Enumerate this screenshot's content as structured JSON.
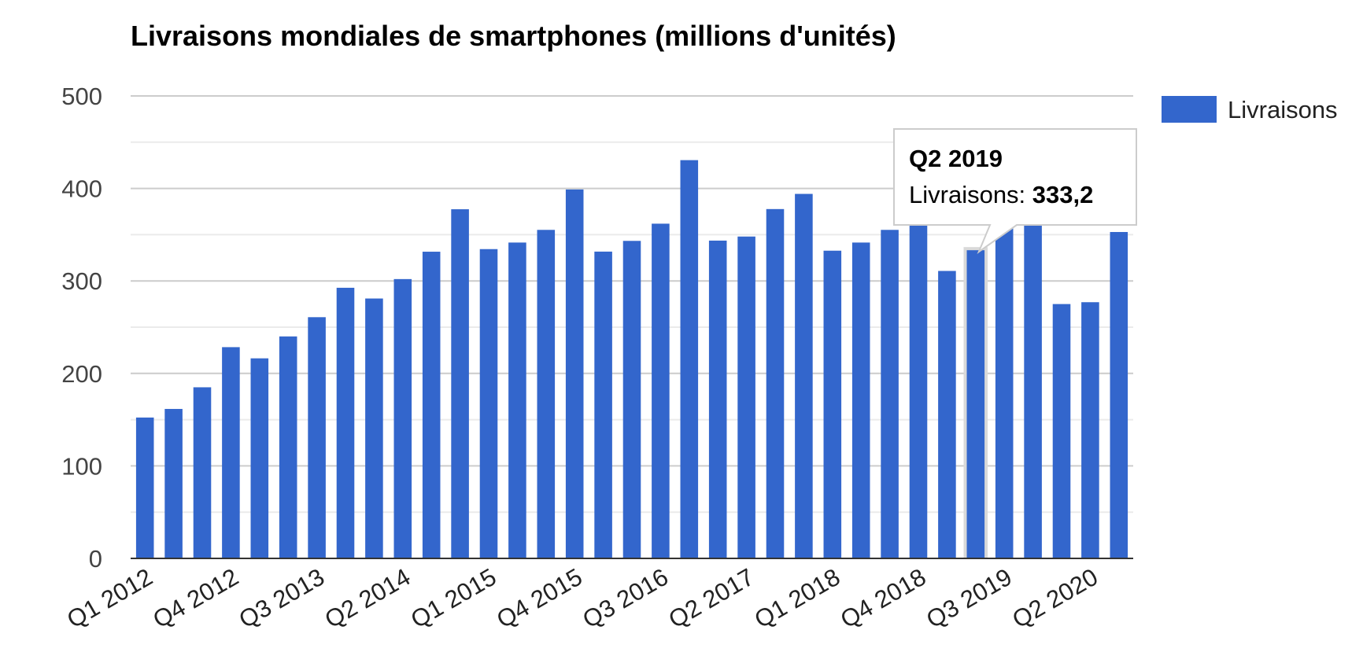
{
  "chart_data": {
    "type": "bar",
    "title": "Livraisons mondiales de smartphones (millions d'unités)",
    "xlabel": "",
    "ylabel": "",
    "ylim": [
      0,
      500
    ],
    "y_ticks": [
      "0",
      "100",
      "200",
      "300",
      "400",
      "500"
    ],
    "y_tick_values": [
      0,
      100,
      200,
      300,
      400,
      500
    ],
    "grid": true,
    "legend_position": "top-right",
    "categories": [
      "Q1 2012",
      "Q2 2012",
      "Q3 2012",
      "Q4 2012",
      "Q1 2013",
      "Q2 2013",
      "Q3 2013",
      "Q4 2013",
      "Q1 2014",
      "Q2 2014",
      "Q3 2014",
      "Q4 2014",
      "Q1 2015",
      "Q2 2015",
      "Q3 2015",
      "Q4 2015",
      "Q1 2016",
      "Q2 2016",
      "Q3 2016",
      "Q4 2016",
      "Q1 2017",
      "Q2 2017",
      "Q3 2017",
      "Q4 2017",
      "Q1 2018",
      "Q2 2018",
      "Q3 2018",
      "Q4 2018",
      "Q1 2019",
      "Q2 2019",
      "Q3 2019",
      "Q4 2019",
      "Q1 2020",
      "Q2 2020",
      "Q3 2020"
    ],
    "visible_x_labels": [
      "Q1 2012",
      "Q4 2012",
      "Q3 2013",
      "Q2 2014",
      "Q1 2015",
      "Q4 2015",
      "Q3 2016",
      "Q2 2017",
      "Q1 2018",
      "Q4 2018",
      "Q3 2019",
      "Q2 2020"
    ],
    "series": [
      {
        "name": "Livraisons",
        "color": "#3366cc",
        "values": [
          152.3,
          161.6,
          185.0,
          228.4,
          216.3,
          240.0,
          260.8,
          292.6,
          281.0,
          302.0,
          331.6,
          377.5,
          334.4,
          341.5,
          355.2,
          398.9,
          331.7,
          343.3,
          361.9,
          430.6,
          343.6,
          348.0,
          377.7,
          394.1,
          332.7,
          341.5,
          355.2,
          360.0,
          310.8,
          333.2,
          358.2,
          359.9,
          275.0,
          277.0,
          352.9
        ]
      }
    ],
    "highlighted_category": "Q2 2019",
    "tooltip": {
      "title": "Q2 2019",
      "label": "Livraisons: ",
      "value": "333,2"
    }
  }
}
